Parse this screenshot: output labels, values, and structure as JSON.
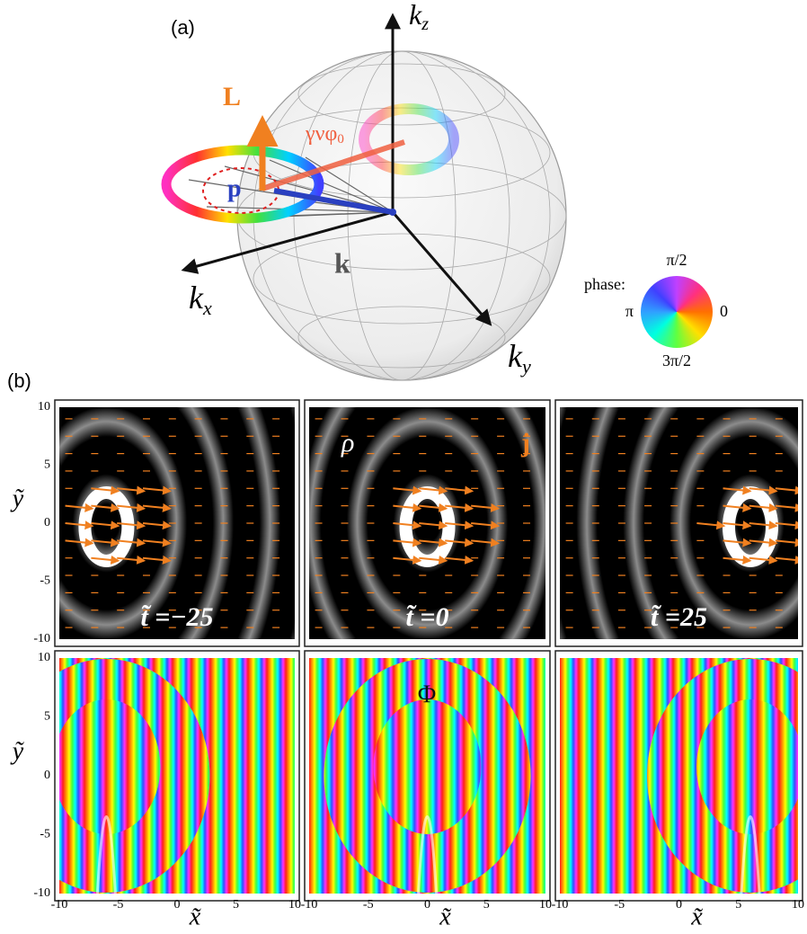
{
  "panel_a": {
    "label": "(a)",
    "kz": {
      "base": "k",
      "sub": "z"
    },
    "kx": {
      "base": "k",
      "sub": "x"
    },
    "ky": {
      "base": "k",
      "sub": "y"
    },
    "L": "L",
    "p": "p",
    "k": "k",
    "angle": {
      "base": "γνφ",
      "sub": "0"
    },
    "phase_legend": {
      "title": "phase:",
      "top": "π/2",
      "left": "π",
      "right": "0",
      "bottom": "3π/2"
    }
  },
  "panel_b": {
    "label": "(b)",
    "density_label": "ρ",
    "current_label": "j",
    "phase_label": "Φ",
    "times": [
      "t̃ =−25",
      "t̃ =0",
      "t̃ =25"
    ],
    "xlabel": "x̃",
    "ylabel": "ỹ",
    "xticks": [
      -10,
      -5,
      0,
      5,
      10
    ],
    "yticks": [
      10,
      5,
      0,
      -5,
      -10
    ]
  }
}
